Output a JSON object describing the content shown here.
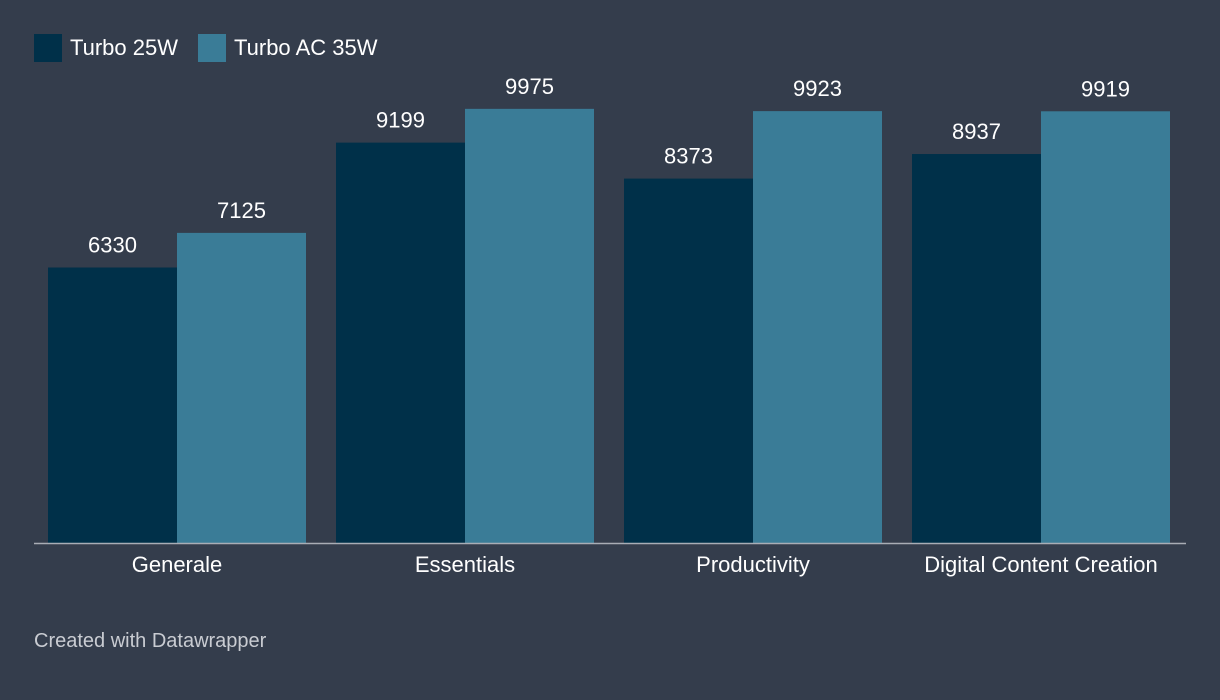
{
  "chart_data": {
    "type": "bar",
    "title": "",
    "xlabel": "",
    "ylabel": "",
    "ylim": [
      0,
      10500
    ],
    "grid": false,
    "legend_position": "top-left",
    "categories": [
      "Generale",
      "Essentials",
      "Productivity",
      "Digital Content Creation"
    ],
    "series": [
      {
        "name": "Turbo 25W",
        "color": "#003049",
        "values": [
          6330,
          9199,
          8373,
          8937
        ]
      },
      {
        "name": "Turbo AC 35W",
        "color": "#3a7c97",
        "values": [
          7125,
          9975,
          9923,
          9919
        ]
      }
    ]
  },
  "footer": {
    "credit": "Created with Datawrapper"
  },
  "colors": {
    "background": "#343d4c",
    "axis": "#a9adb5",
    "text": "#ffffff",
    "muted_text": "#c9ccd2"
  }
}
